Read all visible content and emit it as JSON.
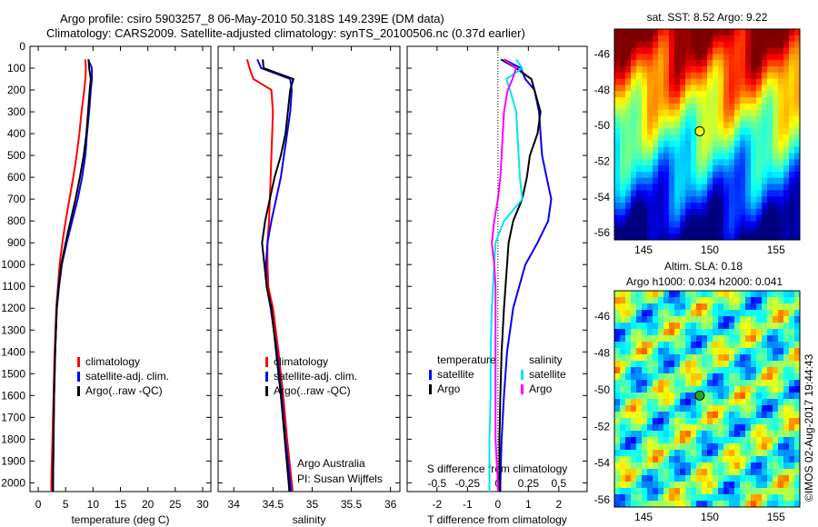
{
  "title": {
    "line1": "Argo profile: csiro 5903257_8 06-May-2010 50.318S 149.239E (DM data)",
    "line2": "Climatology: CARS2009. Satellite-adjusted climatology: synTS_20100506.nc (0.37d earlier)"
  },
  "colors": {
    "clim": "#ff0000",
    "sat": "#0000ff",
    "argo": "#000000",
    "s_sat": "#00e5ee",
    "s_argo": "#ff00ff"
  },
  "chart_data": [
    {
      "type": "line",
      "name": "temperature",
      "xlabel": "temperature (deg C)",
      "xlim": [
        -1.5,
        31.5
      ],
      "ylim": [
        2040,
        0
      ],
      "xticks": [
        "0",
        "5",
        "10",
        "15",
        "20",
        "25",
        "30"
      ],
      "xtick_values": [
        0,
        5,
        10,
        15,
        20,
        25,
        30
      ],
      "yticks": [
        "0",
        "100",
        "200",
        "300",
        "400",
        "500",
        "600",
        "700",
        "800",
        "900",
        "1000",
        "1100",
        "1200",
        "1300",
        "1400",
        "1500",
        "1600",
        "1700",
        "1800",
        "1900",
        "2000"
      ],
      "depth": [
        60,
        100,
        150,
        200,
        300,
        400,
        500,
        600,
        700,
        800,
        900,
        1000,
        1100,
        1200,
        1400,
        1600,
        1800,
        2000,
        2040
      ],
      "series": [
        {
          "name": "climatology",
          "color": "clim",
          "values": [
            8.6,
            8.7,
            8.6,
            8.4,
            7.9,
            7.5,
            7.0,
            6.4,
            5.7,
            5.0,
            4.4,
            3.9,
            3.6,
            3.3,
            3.0,
            2.8,
            2.6,
            2.4,
            2.4
          ]
        },
        {
          "name": "satellite-adj. clim.",
          "color": "sat",
          "values": [
            9.1,
            9.8,
            9.8,
            9.6,
            9.3,
            8.9,
            8.6,
            8.0,
            7.2,
            6.2,
            5.2,
            4.3,
            3.8,
            3.4,
            3.1,
            2.9,
            2.8,
            2.7,
            2.7
          ]
        },
        {
          "name": "Argo(..raw -QC)",
          "color": "argo",
          "values": [
            9.2,
            9.3,
            9.6,
            9.4,
            9.1,
            8.8,
            8.3,
            7.6,
            6.8,
            5.9,
            5.0,
            4.2,
            3.7,
            3.4,
            3.1,
            2.9,
            2.8,
            2.7,
            2.7
          ]
        }
      ]
    },
    {
      "type": "line",
      "name": "salinity",
      "xlabel": "salinity",
      "xlim": [
        33.8,
        36.12
      ],
      "ylim": [
        2040,
        0
      ],
      "xticks": [
        "34",
        "34.5",
        "35",
        "35.5",
        "36"
      ],
      "xtick_values": [
        34,
        34.5,
        35,
        35.5,
        36
      ],
      "depth": [
        60,
        100,
        150,
        200,
        300,
        400,
        500,
        600,
        700,
        800,
        900,
        1000,
        1100,
        1200,
        1400,
        1600,
        1800,
        2000,
        2040
      ],
      "series": [
        {
          "name": "climatology",
          "color": "clim",
          "values": [
            34.17,
            34.2,
            34.25,
            34.48,
            34.5,
            34.49,
            34.48,
            34.47,
            34.46,
            34.45,
            34.43,
            34.43,
            34.44,
            34.5,
            34.57,
            34.63,
            34.68,
            34.74,
            34.75
          ]
        },
        {
          "name": "satellite-adj. clim.",
          "color": "sat",
          "values": [
            34.3,
            34.35,
            34.72,
            34.74,
            34.72,
            34.68,
            34.64,
            34.6,
            34.54,
            34.48,
            34.43,
            34.41,
            34.42,
            34.47,
            34.55,
            34.61,
            34.66,
            34.72,
            34.73
          ]
        },
        {
          "name": "Argo(..raw -QC)",
          "color": "argo",
          "values": [
            34.37,
            34.38,
            34.76,
            34.72,
            34.69,
            34.66,
            34.6,
            34.52,
            34.46,
            34.4,
            34.36,
            34.39,
            34.42,
            34.48,
            34.54,
            34.6,
            34.65,
            34.7,
            34.71
          ]
        }
      ],
      "annotation": [
        "Argo Australia",
        "PI: Susan Wijffels"
      ]
    },
    {
      "type": "line",
      "name": "difference",
      "xlabel": "T difference from climatology",
      "x2label": "S difference from climatology",
      "xlim": [
        -2.98,
        2.93
      ],
      "ylim": [
        2040,
        0
      ],
      "xticks": [
        "-2",
        "-1",
        "0",
        "1",
        "2"
      ],
      "xtick_values": [
        -2,
        -1,
        0,
        1,
        2
      ],
      "x2ticks": [
        "-0.5",
        "-0.25",
        "0",
        "0.25",
        "0.5"
      ],
      "x2tick_values": [
        -0.5,
        -0.25,
        0,
        0.25,
        0.5
      ],
      "legend": {
        "temperature": "temperature",
        "salinity": "salinity",
        "sat": "satellite",
        "argo": "Argo"
      },
      "depth": [
        60,
        100,
        150,
        200,
        300,
        400,
        500,
        600,
        700,
        800,
        900,
        1000,
        1100,
        1200,
        1400,
        1600,
        1800,
        2000,
        2040
      ],
      "series": [
        {
          "name": "T satellite",
          "color": "sat",
          "values": [
            0.2,
            0.75,
            0.9,
            1.2,
            1.35,
            1.4,
            1.45,
            1.6,
            1.75,
            1.65,
            1.3,
            0.9,
            0.7,
            0.5,
            0.3,
            0.2,
            0.12,
            0.08,
            0.08
          ]
        },
        {
          "name": "T Argo",
          "color": "argo",
          "values": [
            0.1,
            0.6,
            1.1,
            1.2,
            1.4,
            1.3,
            1.05,
            0.95,
            0.8,
            0.5,
            0.35,
            0.3,
            0.25,
            0.2,
            0.12,
            0.08,
            0.05,
            0.05,
            0.05
          ]
        },
        {
          "name": "S satellite",
          "color": "s_sat",
          "scale": "S",
          "values": [
            0.15,
            0.2,
            0.07,
            0.1,
            0.15,
            0.16,
            0.17,
            0.18,
            0.2,
            0.05,
            -0.02,
            -0.03,
            -0.04,
            -0.05,
            -0.06,
            -0.06,
            -0.07,
            -0.07,
            -0.07
          ]
        },
        {
          "name": "S Argo",
          "color": "s_argo",
          "scale": "S",
          "values": [
            0.05,
            0.15,
            0.12,
            0.08,
            0.05,
            0.04,
            0.03,
            0.02,
            0.0,
            -0.03,
            -0.05,
            -0.03,
            -0.02,
            -0.02,
            -0.02,
            -0.02,
            -0.02,
            0.0,
            0.0
          ]
        }
      ]
    },
    {
      "type": "heatmap",
      "name": "sst-map",
      "title": "sat. SST: 8.52 Argo: 9.22",
      "xticks": [
        "145",
        "150",
        "155"
      ],
      "yticks": [
        "-46",
        "-48",
        "-50",
        "-52",
        "-54",
        "-56"
      ],
      "xlim": [
        142.8,
        156.8
      ],
      "ylim": [
        -56.4,
        -44.6
      ],
      "point": [
        149.24,
        -50.32
      ]
    },
    {
      "type": "heatmap",
      "name": "sla-map",
      "title": "Altim. SLA: 0.18",
      "subtitle": "Argo h1000: 0.034 h2000: 0.041",
      "xticks": [
        "145",
        "150",
        "155"
      ],
      "yticks": [
        "-46",
        "-48",
        "-50",
        "-52",
        "-54",
        "-56"
      ],
      "xlim": [
        142.8,
        156.8
      ],
      "ylim": [
        -56.4,
        -44.6
      ],
      "point": [
        149.24,
        -50.32
      ]
    }
  ],
  "credit": "©IMOS 02-Aug-2017 19:44:43"
}
